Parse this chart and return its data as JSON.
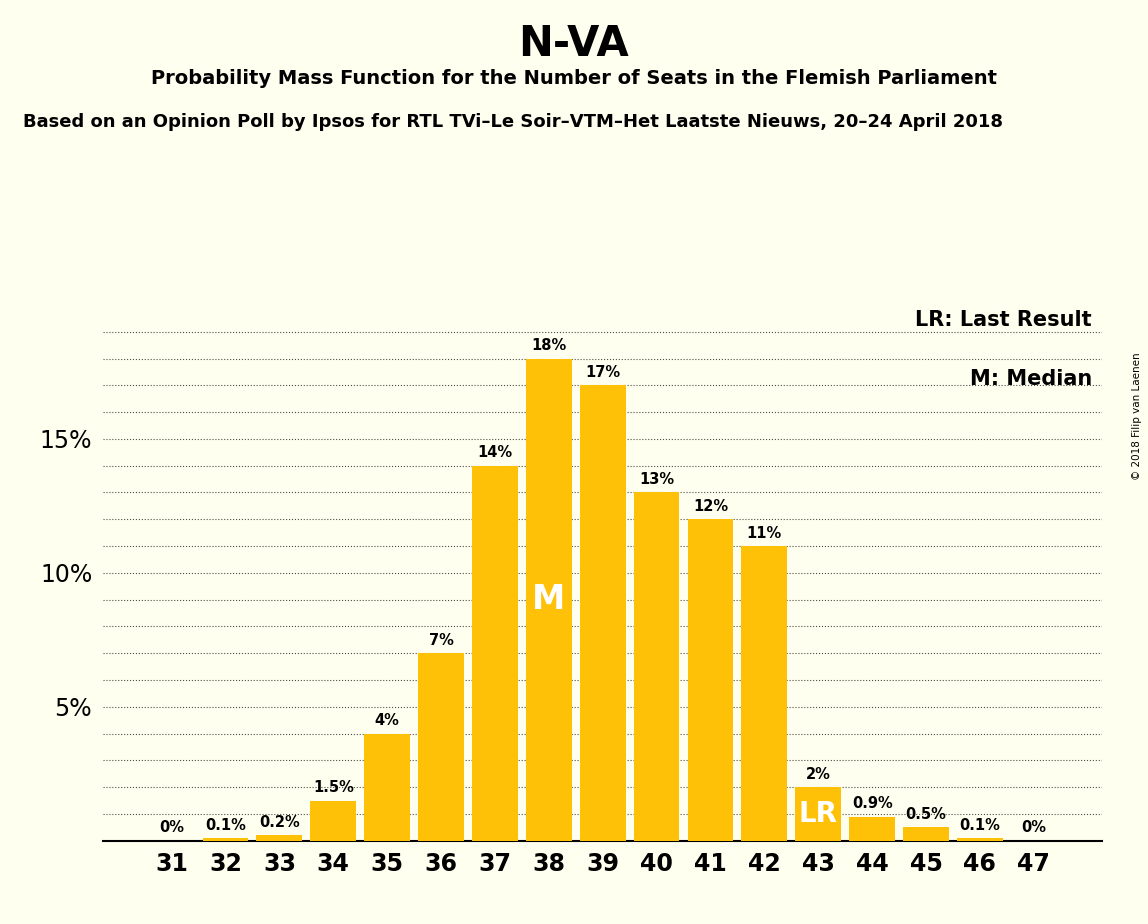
{
  "title": "N-VA",
  "subtitle1": "Probability Mass Function for the Number of Seats in the Flemish Parliament",
  "subtitle2": "Based on an Opinion Poll by Ipsos for RTL TVi–Le Soir–VTM–Het Laatste Nieuws, 20–24 April 2018",
  "copyright": "© 2018 Filip van Laenen",
  "categories": [
    31,
    32,
    33,
    34,
    35,
    36,
    37,
    38,
    39,
    40,
    41,
    42,
    43,
    44,
    45,
    46,
    47
  ],
  "values": [
    0.0,
    0.1,
    0.2,
    1.5,
    4.0,
    7.0,
    14.0,
    18.0,
    17.0,
    13.0,
    12.0,
    11.0,
    2.0,
    0.9,
    0.5,
    0.1,
    0.0
  ],
  "bar_color": "#FFC107",
  "background_color": "#FFFFF0",
  "median_seat": 38,
  "lr_seat": 43,
  "legend_lr": "LR: Last Result",
  "legend_m": "M: Median",
  "ytick_labels": [
    5,
    10,
    15
  ],
  "grid_ticks": [
    1,
    2,
    3,
    4,
    5,
    6,
    7,
    8,
    9,
    10,
    11,
    12,
    13,
    14,
    15,
    16,
    17,
    18,
    19
  ],
  "ylim": [
    0,
    20
  ],
  "label_map": {
    "31": "0%",
    "32": "0.1%",
    "33": "0.2%",
    "34": "1.5%",
    "35": "4%",
    "36": "7%",
    "37": "14%",
    "38": "18%",
    "39": "17%",
    "40": "13%",
    "41": "12%",
    "42": "11%",
    "43": "2%",
    "44": "0.9%",
    "45": "0.5%",
    "46": "0.1%",
    "47": "0%"
  }
}
